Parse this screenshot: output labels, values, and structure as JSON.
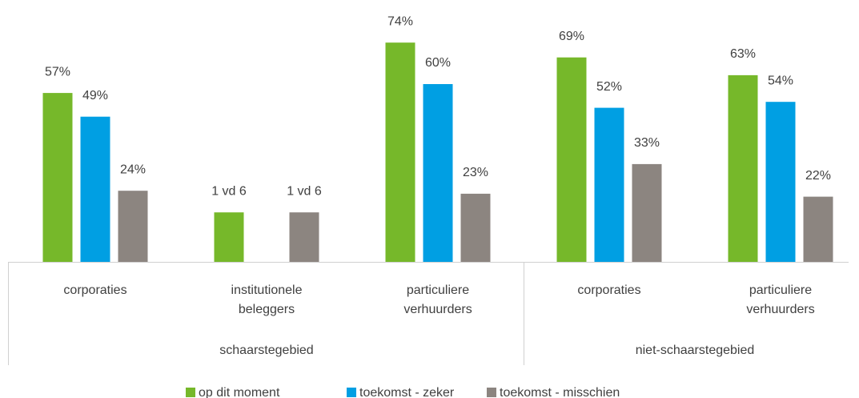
{
  "chart_data": {
    "type": "bar",
    "groups": [
      {
        "name": "schaarstegebied",
        "categories": [
          "corporaties",
          "institutionele beleggers",
          "particuliere verhuurders"
        ]
      },
      {
        "name": "niet-schaarstegebied",
        "categories": [
          "corporaties",
          "particuliere verhuurders"
        ]
      }
    ],
    "series": [
      {
        "name": "op dit moment",
        "color": "#76b82a",
        "values": [
          57,
          16.7,
          74,
          69,
          63
        ],
        "value_labels": [
          "57%",
          "1 vd 6",
          "74%",
          "69%",
          "63%"
        ]
      },
      {
        "name": "toekomst - zeker",
        "color": "#009fe3",
        "values": [
          49,
          null,
          60,
          52,
          54
        ],
        "value_labels": [
          "49%",
          null,
          "60%",
          "52%",
          "54%"
        ]
      },
      {
        "name": "toekomst - misschien",
        "color": "#8c8580",
        "values": [
          24,
          16.7,
          23,
          33,
          22
        ],
        "value_labels": [
          "24%",
          "1 vd 6",
          "23%",
          "33%",
          "22%"
        ]
      }
    ],
    "ylim": [
      0,
      80
    ],
    "legend": "bottom"
  }
}
